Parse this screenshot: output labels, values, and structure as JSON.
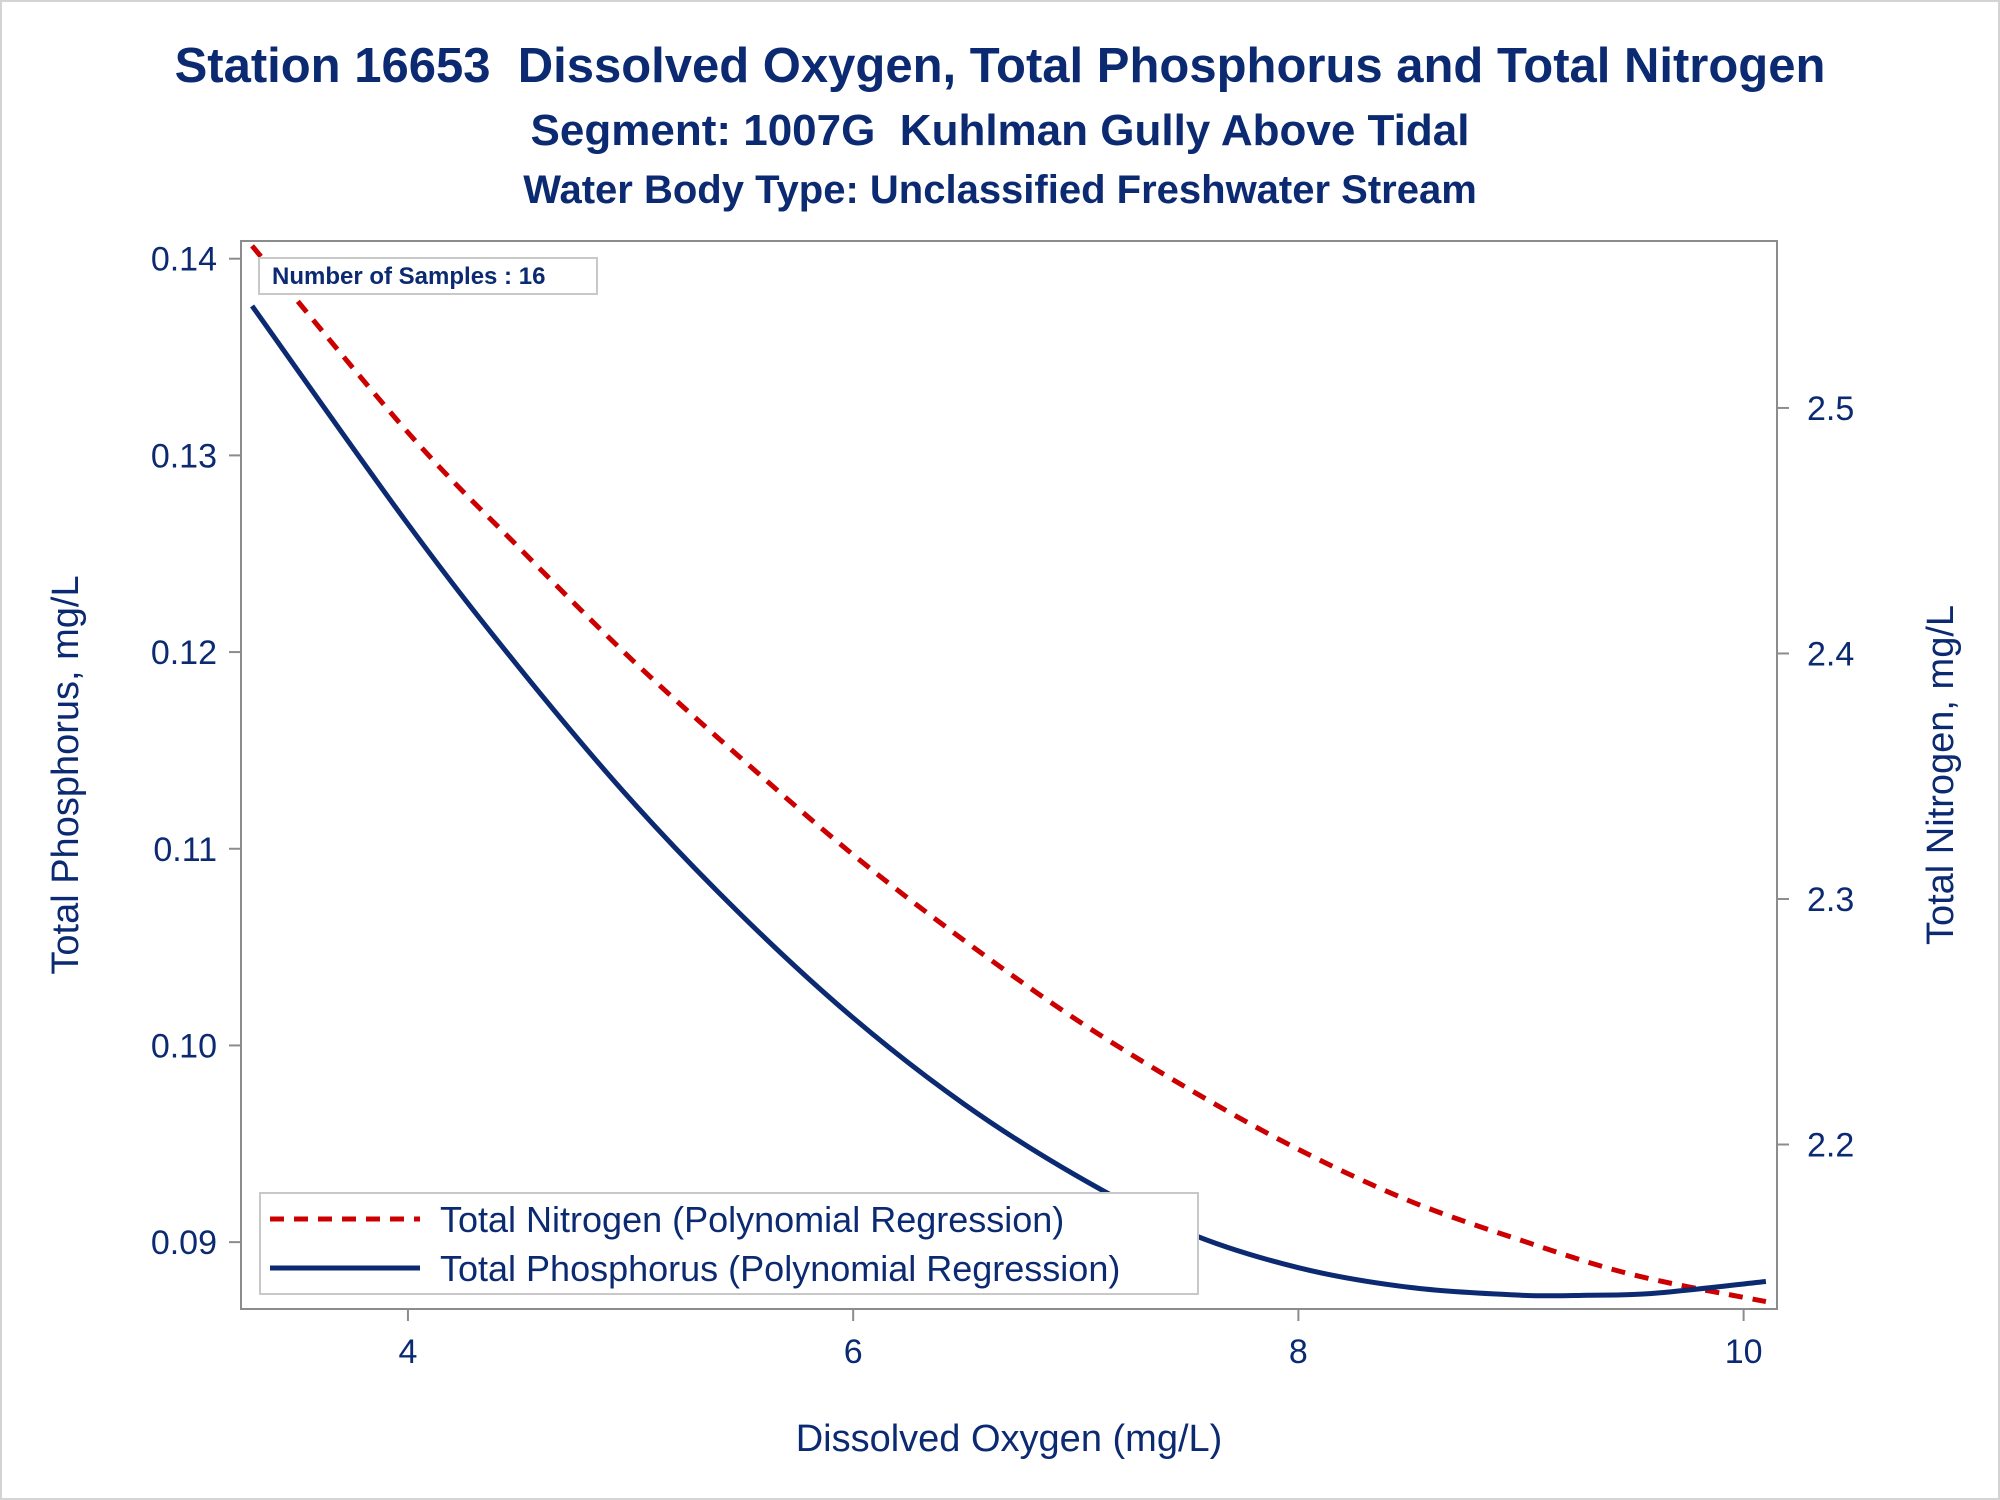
{
  "titles": {
    "line1": "Station 16653  Dissolved Oxygen, Total Phosphorus and Total Nitrogen",
    "line2": "Segment: 1007G  Kuhlman Gully Above Tidal",
    "line3": "Water Body Type: Unclassified Freshwater Stream"
  },
  "colors": {
    "text": "#0b2a72",
    "phosphorus": "#0b2a72",
    "nitrogen": "#cc0000",
    "axis": "#8c8c8c"
  },
  "chart_data": {
    "type": "line",
    "title": "Station 16653  Dissolved Oxygen, Total Phosphorus and Total Nitrogen",
    "xlabel": "Dissolved Oxygen (mg/L)",
    "ylabel": "Total Phosphorus, mg/L",
    "y2label": "Total Nitrogen, mg/L",
    "xlim": [
      3.25,
      10.15
    ],
    "ylim": [
      0.0866,
      0.1409
    ],
    "y2lim": [
      2.133,
      2.568
    ],
    "xticks": [
      4,
      6,
      8,
      10
    ],
    "xtick_labels": [
      "4",
      "6",
      "8",
      "10"
    ],
    "yticks": [
      0.09,
      0.1,
      0.11,
      0.12,
      0.13,
      0.14
    ],
    "ytick_labels": [
      "0.09",
      "0.10",
      "0.11",
      "0.12",
      "0.13",
      "0.14"
    ],
    "y2ticks": [
      2.2,
      2.3,
      2.4,
      2.5
    ],
    "y2tick_labels": [
      "2.2",
      "2.3",
      "2.4",
      "2.5"
    ],
    "annotation": "Number of Samples : 16",
    "legend_position": "bottom-left",
    "grid": false,
    "series": [
      {
        "name": "Total Nitrogen (Polynomial Regression)",
        "axis": "right",
        "style": "dashed",
        "x": [
          3.3,
          4.0,
          4.5,
          5.0,
          5.5,
          6.0,
          6.5,
          7.0,
          7.5,
          8.0,
          8.5,
          9.0,
          9.5,
          10.1
        ],
        "y": [
          2.566,
          2.49,
          2.443,
          2.398,
          2.357,
          2.318,
          2.283,
          2.251,
          2.223,
          2.198,
          2.177,
          2.161,
          2.147,
          2.136
        ]
      },
      {
        "name": "Total Phosphorus (Polynomial Regression)",
        "axis": "left",
        "style": "solid",
        "x": [
          3.3,
          4.0,
          4.5,
          5.0,
          5.5,
          6.0,
          6.5,
          7.0,
          7.5,
          8.0,
          8.5,
          9.0,
          9.3,
          9.6,
          10.1
        ],
        "y": [
          0.1376,
          0.1265,
          0.1192,
          0.1125,
          0.1066,
          0.1014,
          0.097,
          0.0934,
          0.0905,
          0.0887,
          0.0877,
          0.0873,
          0.0873,
          0.0874,
          0.088
        ]
      }
    ]
  }
}
